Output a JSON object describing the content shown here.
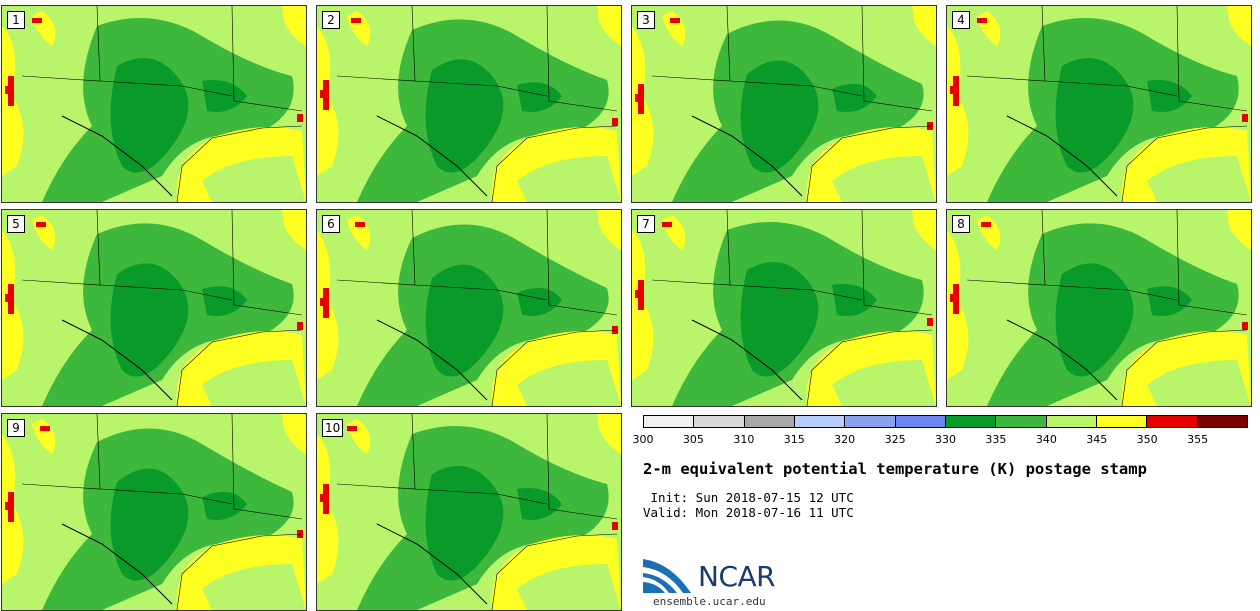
{
  "members": [
    {
      "label": "1"
    },
    {
      "label": "2"
    },
    {
      "label": "3"
    },
    {
      "label": "4"
    },
    {
      "label": "5"
    },
    {
      "label": "6"
    },
    {
      "label": "7"
    },
    {
      "label": "8"
    },
    {
      "label": "9"
    },
    {
      "label": "10"
    }
  ],
  "colorbar": {
    "ticks": [
      "300",
      "305",
      "310",
      "315",
      "320",
      "325",
      "330",
      "335",
      "340",
      "345",
      "350",
      "355"
    ],
    "colors": [
      "#f0f0f0",
      "#d8d8d8",
      "#a8a8a8",
      "#b8ccff",
      "#8aa0f0",
      "#6b86f0",
      "#0a9a2a",
      "#3db83d",
      "#b9f56a",
      "#ffff22",
      "#e60000",
      "#7a0000"
    ]
  },
  "title": "2-m equivalent potential temperature (K) postage stamp",
  "init_line": " Init: Sun 2018-07-15 12 UTC",
  "valid_line": "Valid: Mon 2018-07-16 11 UTC",
  "logo": {
    "text": "NCAR",
    "website": "ensemble.ucar.edu",
    "color": "#1a6fb5"
  }
}
